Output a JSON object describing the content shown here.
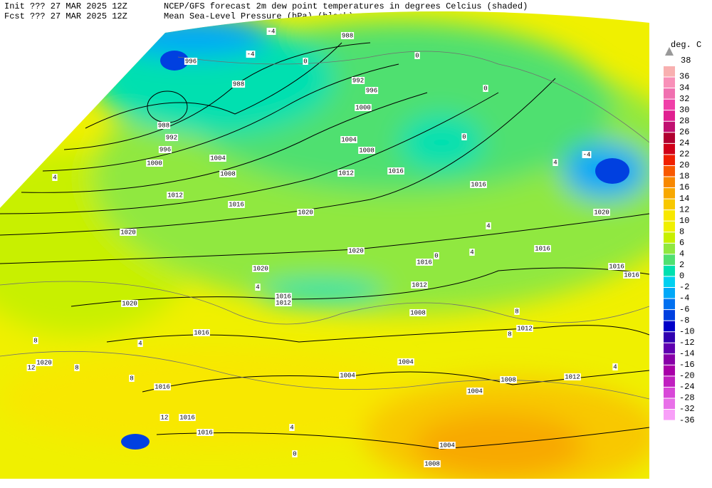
{
  "header": {
    "init": "Init  ??? 27 MAR 2025 12Z",
    "fcst": "Fcst ??? 27 MAR 2025 12Z",
    "title": "NCEP/GFS forecast 2m dew point temperatures in degrees Celcius (shaded)",
    "subtitle": "Mean Sea-Level Pressure (hPa) (black)."
  },
  "colorbar": {
    "unit": "deg. C",
    "top": 38,
    "labels": [
      36,
      34,
      32,
      30,
      28,
      26,
      24,
      22,
      20,
      18,
      16,
      14,
      12,
      10,
      8,
      6,
      4,
      2,
      0,
      -2,
      -4,
      -6,
      -8,
      -10,
      -12,
      -14,
      -16,
      -20,
      -24,
      -28,
      -32,
      -36
    ],
    "colors": [
      "#f8b0b0",
      "#f890b8",
      "#f070b0",
      "#f040a8",
      "#e02090",
      "#c01070",
      "#b00030",
      "#d00018",
      "#f02000",
      "#f85800",
      "#f88800",
      "#f8a800",
      "#f8c800",
      "#f8e800",
      "#f0f000",
      "#c8f000",
      "#90e840",
      "#50e070",
      "#00e0b0",
      "#00d0f0",
      "#00a8f8",
      "#0070f0",
      "#0040e0",
      "#0000c8",
      "#3000b0",
      "#6000b0",
      "#8800a8",
      "#a800a8",
      "#c020c0",
      "#d848d8",
      "#e870e8",
      "#f8a0f8"
    ]
  },
  "isobar_labels": [
    996,
    988,
    988,
    992,
    996,
    1000,
    988,
    992,
    996,
    1000,
    1004,
    1008,
    1004,
    1008,
    1012,
    1016,
    1016,
    1020,
    1012,
    1016,
    1020,
    1020,
    1020,
    1016,
    1016,
    1016,
    1016,
    1020,
    1016,
    1012,
    1012,
    1008,
    1012,
    1020,
    1016,
    1020,
    1004,
    1004,
    1008,
    1012,
    1004,
    1016,
    1016,
    1016,
    1004,
    1008
  ],
  "dewpoint_labels": [
    -4,
    -4,
    0,
    -4,
    4,
    0,
    0,
    0,
    4,
    8,
    12,
    12,
    4,
    8,
    8,
    4,
    4,
    0,
    4,
    8,
    8,
    4,
    4,
    0
  ]
}
